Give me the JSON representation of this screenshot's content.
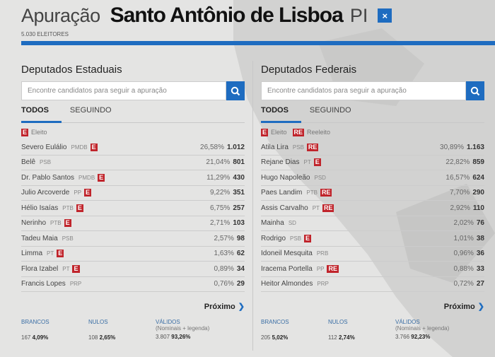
{
  "header": {
    "prefix": "Apuração",
    "city": "Santo Antônio de Lisboa",
    "state": "PI",
    "close_icon": "×",
    "electors": "5.030 ELEITORES"
  },
  "colors": {
    "accent": "#1e6cc0",
    "badge": "#c0242b"
  },
  "panels": [
    {
      "title": "Deputados Estaduais",
      "search_placeholder": "Encontre candidatos para seguir a apuração",
      "tabs": [
        "TODOS",
        "SEGUINDO"
      ],
      "legend": [
        {
          "badge": "E",
          "label": "Eleito"
        }
      ],
      "candidates": [
        {
          "name": "Severo Eulálio",
          "party": "PMDB",
          "badge": "E",
          "pct": "26,58%",
          "votes": "1.012"
        },
        {
          "name": "Belê",
          "party": "PSB",
          "badge": "",
          "pct": "21,04%",
          "votes": "801"
        },
        {
          "name": "Dr. Pablo Santos",
          "party": "PMDB",
          "badge": "E",
          "pct": "11,29%",
          "votes": "430"
        },
        {
          "name": "Julio Arcoverde",
          "party": "PP",
          "badge": "E",
          "pct": "9,22%",
          "votes": "351"
        },
        {
          "name": "Hélio Isaías",
          "party": "PTB",
          "badge": "E",
          "pct": "6,75%",
          "votes": "257"
        },
        {
          "name": "Nerinho",
          "party": "PTB",
          "badge": "E",
          "pct": "2,71%",
          "votes": "103"
        },
        {
          "name": "Tadeu Maia",
          "party": "PSB",
          "badge": "",
          "pct": "2,57%",
          "votes": "98"
        },
        {
          "name": "Limma",
          "party": "PT",
          "badge": "E",
          "pct": "1,63%",
          "votes": "62"
        },
        {
          "name": "Flora Izabel",
          "party": "PT",
          "badge": "E",
          "pct": "0,89%",
          "votes": "34"
        },
        {
          "name": "Francis Lopes",
          "party": "PRP",
          "badge": "",
          "pct": "0,76%",
          "votes": "29"
        }
      ],
      "next": "Próximo",
      "stats": [
        {
          "label": "BRANCOS",
          "sub": "",
          "count": "167",
          "pct": "4,09%"
        },
        {
          "label": "NULOS",
          "sub": "",
          "count": "108",
          "pct": "2,65%"
        },
        {
          "label": "VÁLIDOS",
          "sub": "(Nominais + legenda)",
          "count": "3.807",
          "pct": "93,26%"
        }
      ]
    },
    {
      "title": "Deputados Federais",
      "search_placeholder": "Encontre candidatos para seguir a apuração",
      "tabs": [
        "TODOS",
        "SEGUINDO"
      ],
      "legend": [
        {
          "badge": "E",
          "label": "Eleito"
        },
        {
          "badge": "RE",
          "label": "Reeleito"
        }
      ],
      "candidates": [
        {
          "name": "Atila Lira",
          "party": "PSB",
          "badge": "RE",
          "pct": "30,89%",
          "votes": "1.163"
        },
        {
          "name": "Rejane Dias",
          "party": "PT",
          "badge": "E",
          "pct": "22,82%",
          "votes": "859"
        },
        {
          "name": "Hugo Napoleão",
          "party": "PSD",
          "badge": "",
          "pct": "16,57%",
          "votes": "624"
        },
        {
          "name": "Paes Landim",
          "party": "PTB",
          "badge": "RE",
          "pct": "7,70%",
          "votes": "290"
        },
        {
          "name": "Assis Carvalho",
          "party": "PT",
          "badge": "RE",
          "pct": "2,92%",
          "votes": "110"
        },
        {
          "name": "Mainha",
          "party": "SD",
          "badge": "",
          "pct": "2,02%",
          "votes": "76"
        },
        {
          "name": "Rodrigo",
          "party": "PSB",
          "badge": "E",
          "pct": "1,01%",
          "votes": "38"
        },
        {
          "name": "Idoneil Mesquita",
          "party": "PRB",
          "badge": "",
          "pct": "0,96%",
          "votes": "36"
        },
        {
          "name": "Iracema Portella",
          "party": "PP",
          "badge": "RE",
          "pct": "0,88%",
          "votes": "33"
        },
        {
          "name": "Heitor Almondes",
          "party": "PRP",
          "badge": "",
          "pct": "0,72%",
          "votes": "27"
        }
      ],
      "next": "Próximo",
      "stats": [
        {
          "label": "BRANCOS",
          "sub": "",
          "count": "205",
          "pct": "5,02%"
        },
        {
          "label": "NULOS",
          "sub": "",
          "count": "112",
          "pct": "2,74%"
        },
        {
          "label": "VÁLIDOS",
          "sub": "(Nominais + legenda)",
          "count": "3.766",
          "pct": "92,23%"
        }
      ]
    }
  ]
}
